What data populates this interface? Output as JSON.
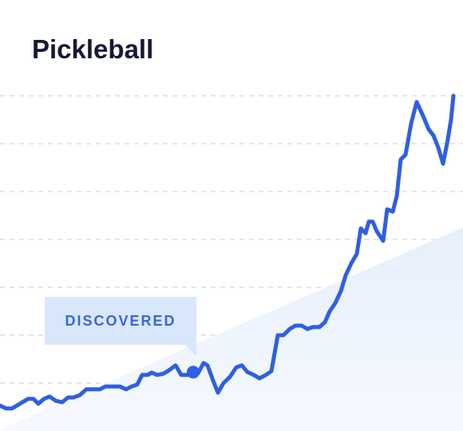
{
  "chart_data": {
    "type": "line",
    "title": "Pickleball",
    "color": "#2f5fe3",
    "grid": true,
    "xlim": [
      0,
      580
    ],
    "ylim": [
      0,
      90
    ],
    "yticks": [
      10,
      20,
      30,
      40,
      50,
      60,
      70
    ],
    "x": [
      0,
      8,
      15,
      25,
      35,
      42,
      48,
      55,
      62,
      70,
      78,
      85,
      92,
      100,
      108,
      115,
      125,
      132,
      140,
      150,
      158,
      165,
      172,
      178,
      185,
      190,
      197,
      205,
      212,
      220,
      227,
      235,
      242,
      248,
      255,
      260,
      267,
      273,
      280,
      288,
      296,
      303,
      310,
      318,
      325,
      333,
      340,
      348,
      355,
      363,
      370,
      378,
      385,
      392,
      400,
      407,
      413,
      420,
      427,
      433,
      440,
      447,
      452,
      458,
      462,
      467,
      472,
      480,
      485,
      492,
      497,
      502,
      508,
      515,
      522,
      530,
      537,
      543,
      549,
      555,
      560,
      565,
      568
    ],
    "values": [
      5.3,
      4.7,
      4.7,
      5.7,
      6.7,
      6.7,
      5.7,
      6.7,
      7.2,
      6.3,
      6,
      7,
      7,
      7.5,
      8.7,
      8.7,
      8.7,
      9.3,
      9.3,
      9.3,
      8.7,
      9.3,
      9.7,
      11.7,
      11.7,
      12.2,
      11.7,
      12,
      12.7,
      13.7,
      11.7,
      11.7,
      12.3,
      12,
      14.2,
      13.7,
      10.5,
      8,
      10,
      11.3,
      13.3,
      13.7,
      12.3,
      11.7,
      11,
      11.7,
      12.5,
      20,
      20,
      21.3,
      22,
      22,
      21.3,
      21.7,
      21.7,
      22.7,
      25,
      26.7,
      29.2,
      32.5,
      35,
      37,
      42.3,
      41.3,
      43.7,
      43.7,
      41.7,
      39.7,
      46.3,
      45.8,
      49,
      56.7,
      57.7,
      64.2,
      68.7,
      65.8,
      63,
      61.7,
      59.2,
      55.8,
      60,
      65,
      70
    ],
    "annotation": {
      "label": "DISCOVERED",
      "x": 242
    }
  }
}
